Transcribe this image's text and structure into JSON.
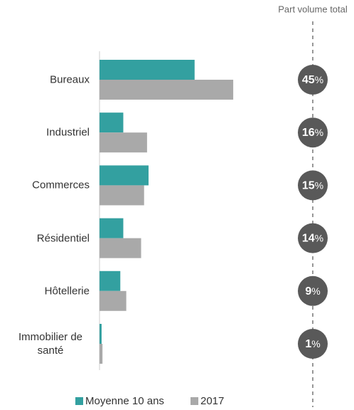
{
  "chart_data": {
    "type": "bar",
    "orientation": "horizontal",
    "categories": [
      "Bureaux",
      "Industriel",
      "Commerces",
      "Résidentiel",
      "Hôtellerie",
      "Immobilier de santé"
    ],
    "series": [
      {
        "name": "Moyenne 10 ans",
        "color": "#33a0a0",
        "values": [
          32,
          8,
          16.5,
          8,
          7,
          0.7
        ]
      },
      {
        "name": "2017",
        "color": "#a9a9a9",
        "values": [
          45,
          16,
          15,
          14,
          9,
          1
        ],
        "value_labels": [
          "45%",
          "16%",
          "15%",
          "14%",
          "9%",
          "1%"
        ]
      }
    ],
    "value_label_title": "Part volume total"
  }
}
